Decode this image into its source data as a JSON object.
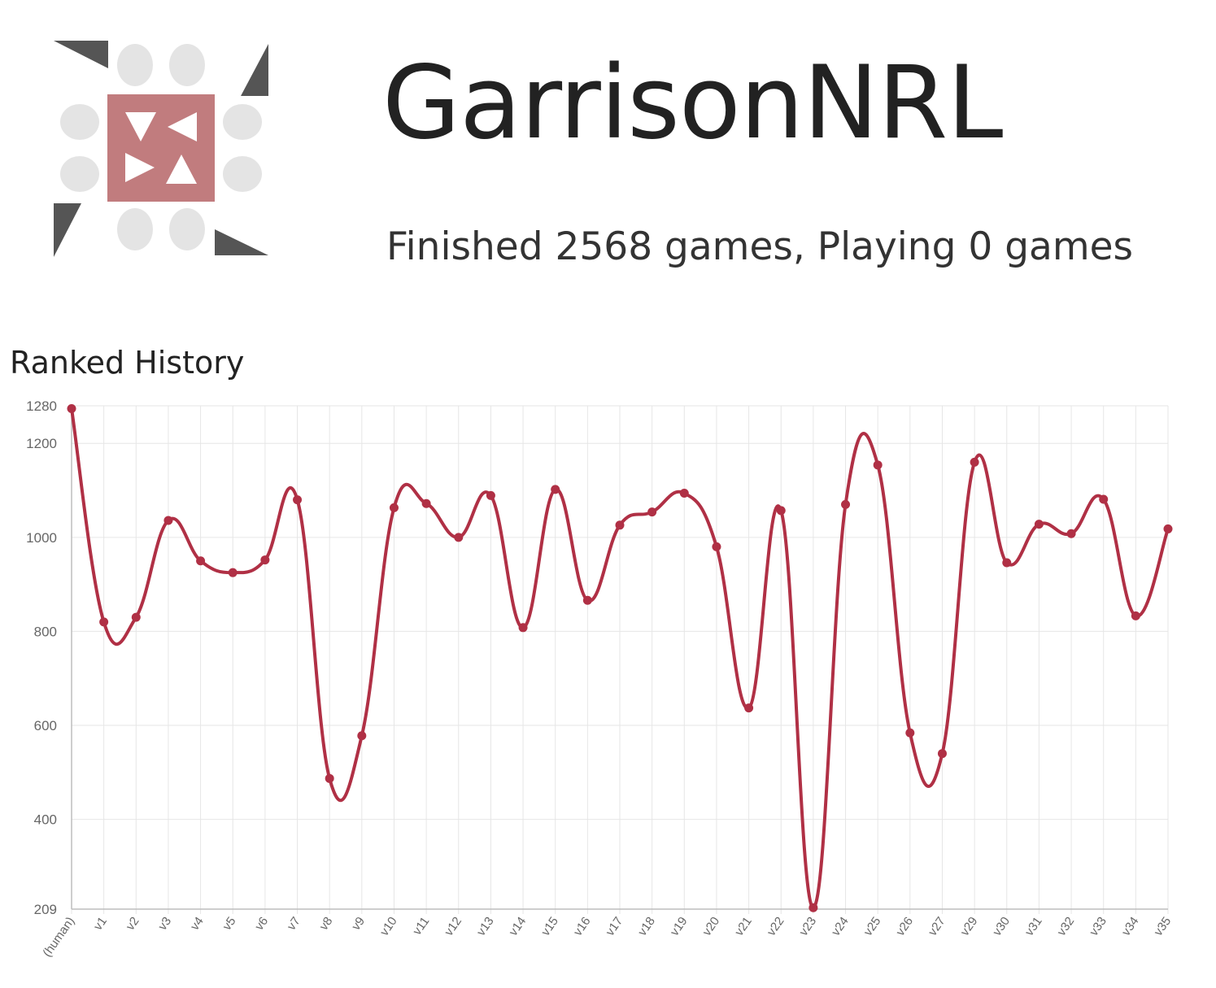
{
  "header": {
    "title": "GarrisonNRL",
    "subtitle": "Finished 2568 games, Playing 0 games"
  },
  "section": {
    "title": "Ranked History"
  },
  "colors": {
    "line": "#b03045",
    "logo_square": "#c17c7e",
    "logo_dots": "#e4e4e4",
    "logo_corners": "#555555",
    "grid": "#e6e6e6"
  },
  "icons": {
    "logo": "bot-avatar-icon"
  },
  "chart_data": {
    "type": "line",
    "categories": [
      "(human)",
      "v1",
      "v2",
      "v3",
      "v4",
      "v5",
      "v6",
      "v7",
      "v8",
      "v9",
      "v10",
      "v11",
      "v12",
      "v13",
      "v14",
      "v15",
      "v16",
      "v17",
      "v18",
      "v19",
      "v20",
      "v21",
      "v22",
      "v23",
      "v24",
      "v25",
      "v26",
      "v27",
      "v29",
      "v30",
      "v31",
      "v32",
      "v33",
      "v34",
      "v35"
    ],
    "series": [
      {
        "values": [
          1274,
          820,
          830,
          1036,
          950,
          925,
          952,
          1080,
          487,
          578,
          1063,
          1072,
          1000,
          1089,
          808,
          1102,
          866,
          1026,
          1054,
          1094,
          980,
          637,
          1057,
          212,
          1070,
          1154,
          584,
          540,
          1160,
          946,
          1028,
          1008,
          1081,
          833,
          1018
        ]
      }
    ],
    "ylim": [
      209,
      1280
    ],
    "yticks": [
      209,
      400,
      600,
      800,
      1000,
      1200,
      1280
    ],
    "grid": true,
    "legend": "none"
  }
}
